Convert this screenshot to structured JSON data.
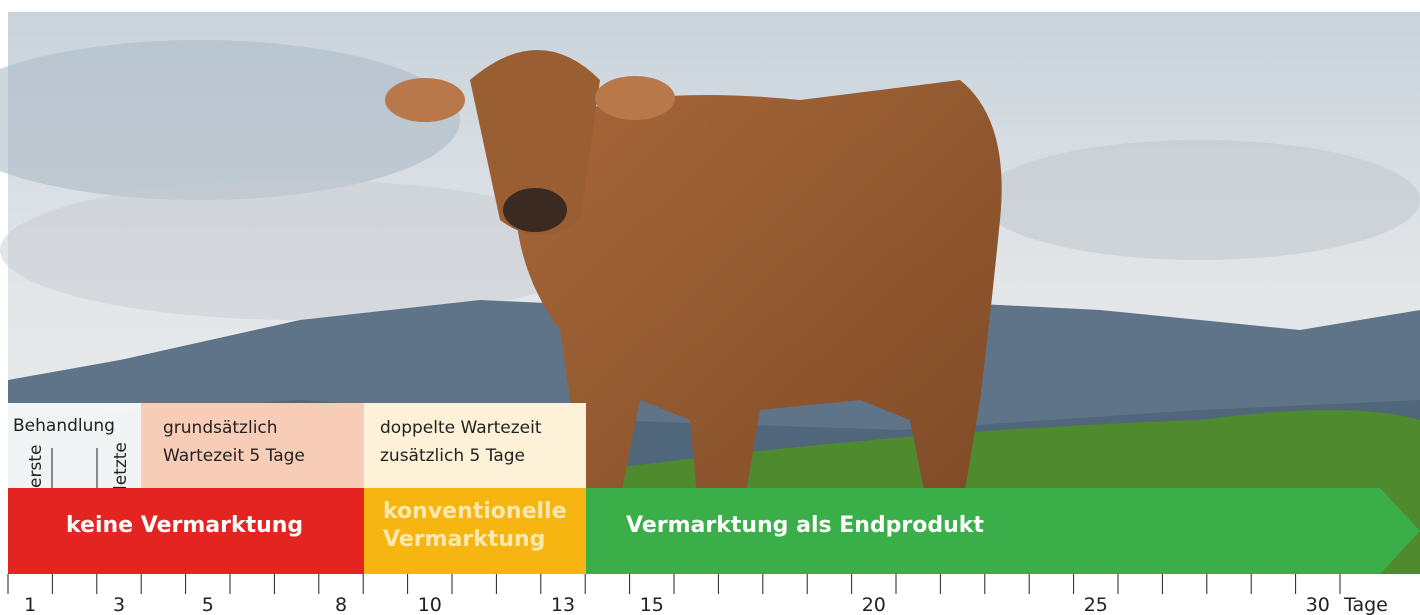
{
  "boxes": {
    "treatment": {
      "title": "Behandlung",
      "first": "erste",
      "last": "letzte"
    },
    "waiting_basic": {
      "line1": "grundsätzlich",
      "line2": "Wartezeit 5 Tage"
    },
    "waiting_double": {
      "line1": "doppelte Wartezeit",
      "line2": "zusätzlich 5 Tage"
    }
  },
  "bands": {
    "no_marketing": "keine Vermarktung",
    "conventional": {
      "line1": "konventionelle",
      "line2": "Vermarktung"
    },
    "end_product": "Vermarktung als Endprodukt"
  },
  "timeline": {
    "days": [
      {
        "value": 1,
        "color": "#222222"
      },
      {
        "value": 3,
        "color": "#e2231a"
      },
      {
        "value": 5,
        "color": "#222222"
      },
      {
        "value": 8,
        "color": "#e2231a"
      },
      {
        "value": 10,
        "color": "#222222"
      },
      {
        "value": 13,
        "color": "#f5a800"
      },
      {
        "value": 15,
        "color": "#222222"
      },
      {
        "value": 20,
        "color": "#222222"
      },
      {
        "value": 25,
        "color": "#222222"
      },
      {
        "value": 30,
        "color": "#222222"
      }
    ],
    "unit": "Tage"
  }
}
